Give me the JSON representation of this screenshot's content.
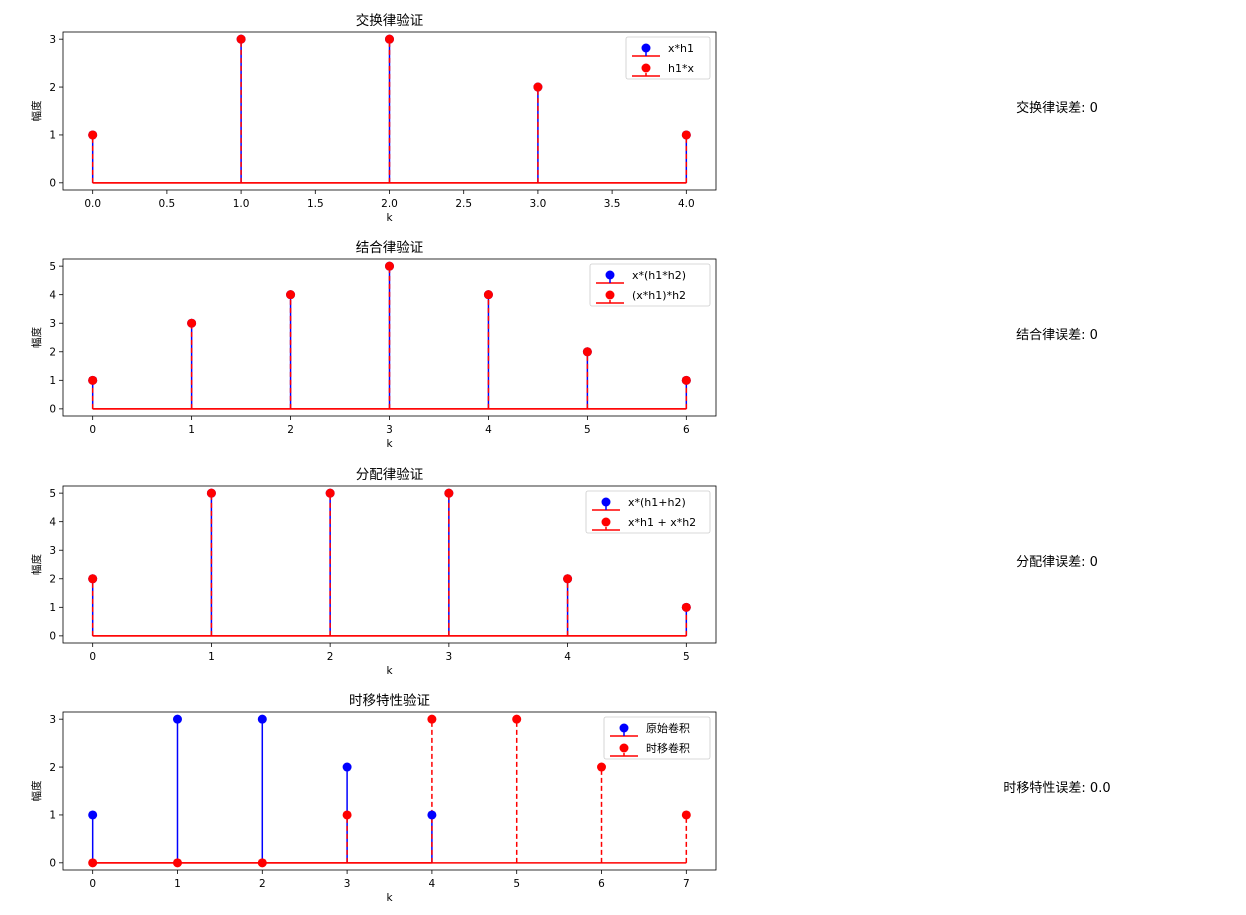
{
  "chart_data": [
    {
      "type": "stem",
      "title": "交换律验证",
      "xlabel": "k",
      "ylabel": "幅度",
      "xlim": [
        -0.2,
        4.2
      ],
      "ylim": [
        -0.15,
        3.15
      ],
      "xticks": [
        0,
        0.5,
        1,
        1.5,
        2,
        2.5,
        3,
        3.5,
        4
      ],
      "xtick_labels": [
        "0.0",
        "0.5",
        "1.0",
        "1.5",
        "2.0",
        "2.5",
        "3.0",
        "3.5",
        "4.0"
      ],
      "yticks": [
        0,
        1,
        2,
        3
      ],
      "legend_position": "top-right",
      "series": [
        {
          "name": "x*h1",
          "color": "#0000ff",
          "line_style": "solid",
          "x": [
            0,
            1,
            2,
            3,
            4
          ],
          "values": [
            1,
            3,
            3,
            2,
            1
          ]
        },
        {
          "name": "h1*x",
          "color": "#ff0000",
          "line_style": "dashed",
          "x": [
            0,
            1,
            2,
            3,
            4
          ],
          "values": [
            1,
            3,
            3,
            2,
            1
          ]
        }
      ]
    },
    {
      "type": "stem",
      "title": "结合律验证",
      "xlabel": "k",
      "ylabel": "幅度",
      "xlim": [
        -0.3,
        6.3
      ],
      "ylim": [
        -0.25,
        5.25
      ],
      "xticks": [
        0,
        1,
        2,
        3,
        4,
        5,
        6
      ],
      "xtick_labels": [
        "0",
        "1",
        "2",
        "3",
        "4",
        "5",
        "6"
      ],
      "yticks": [
        0,
        1,
        2,
        3,
        4,
        5
      ],
      "legend_position": "top-right",
      "series": [
        {
          "name": "x*(h1*h2)",
          "color": "#0000ff",
          "line_style": "solid",
          "x": [
            0,
            1,
            2,
            3,
            4,
            5,
            6
          ],
          "values": [
            1,
            3,
            4,
            5,
            4,
            2,
            1
          ]
        },
        {
          "name": "(x*h1)*h2",
          "color": "#ff0000",
          "line_style": "dashed",
          "x": [
            0,
            1,
            2,
            3,
            4,
            5,
            6
          ],
          "values": [
            1,
            3,
            4,
            5,
            4,
            2,
            1
          ]
        }
      ]
    },
    {
      "type": "stem",
      "title": "分配律验证",
      "xlabel": "k",
      "ylabel": "幅度",
      "xlim": [
        -0.25,
        5.25
      ],
      "ylim": [
        -0.25,
        5.25
      ],
      "xticks": [
        0,
        1,
        2,
        3,
        4,
        5
      ],
      "xtick_labels": [
        "0",
        "1",
        "2",
        "3",
        "4",
        "5"
      ],
      "yticks": [
        0,
        1,
        2,
        3,
        4,
        5
      ],
      "legend_position": "top-right",
      "series": [
        {
          "name": "x*(h1+h2)",
          "color": "#0000ff",
          "line_style": "solid",
          "x": [
            0,
            1,
            2,
            3,
            4,
            5
          ],
          "values": [
            2,
            5,
            5,
            5,
            2,
            1
          ]
        },
        {
          "name": "x*h1 + x*h2",
          "color": "#ff0000",
          "line_style": "dashed",
          "x": [
            0,
            1,
            2,
            3,
            4,
            5
          ],
          "values": [
            2,
            5,
            5,
            5,
            2,
            1
          ]
        }
      ]
    },
    {
      "type": "stem",
      "title": "时移特性验证",
      "xlabel": "k",
      "ylabel": "幅度",
      "xlim": [
        -0.35,
        7.35
      ],
      "ylim": [
        -0.15,
        3.15
      ],
      "xticks": [
        0,
        1,
        2,
        3,
        4,
        5,
        6,
        7
      ],
      "xtick_labels": [
        "0",
        "1",
        "2",
        "3",
        "4",
        "5",
        "6",
        "7"
      ],
      "yticks": [
        0,
        1,
        2,
        3
      ],
      "legend_position": "top-right",
      "series": [
        {
          "name": "原始卷积",
          "color": "#0000ff",
          "line_style": "solid",
          "x": [
            0,
            1,
            2,
            3,
            4
          ],
          "values": [
            1,
            3,
            3,
            2,
            1
          ]
        },
        {
          "name": "时移卷积",
          "color": "#ff0000",
          "line_style": "dashed",
          "x": [
            0,
            1,
            2,
            3,
            4,
            5,
            6,
            7
          ],
          "values": [
            0,
            0,
            0,
            1,
            3,
            3,
            2,
            1
          ]
        }
      ]
    }
  ],
  "error_texts": [
    "交换律误差: 0",
    "结合律误差: 0",
    "分配律误差: 0",
    "时移特性误差: 0.0"
  ]
}
